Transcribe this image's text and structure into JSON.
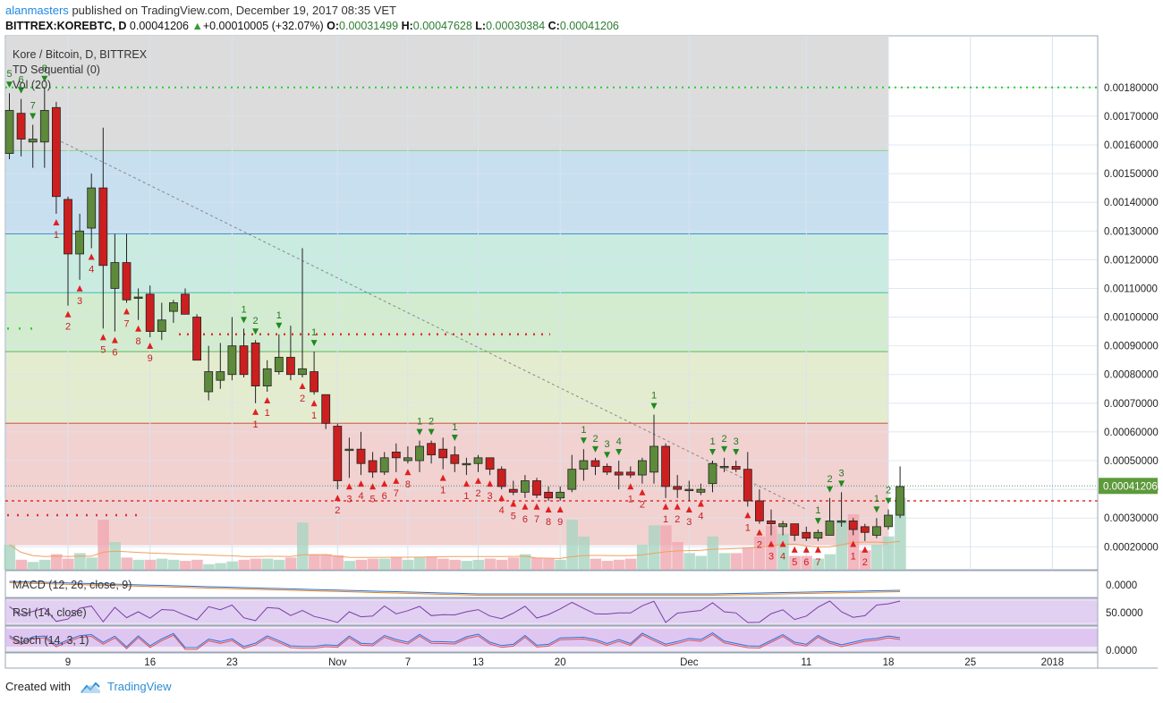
{
  "header": {
    "user": "alanmasters",
    "published": "published on TradingView.com, December 19, 2017 08:35 VET",
    "symbol": "BITTREX:KOREBTC, D",
    "last": "0.00041206",
    "change": "+0.00010005 (+32.07%)",
    "o_label": "O:",
    "o": "0.00031499",
    "h_label": "H:",
    "h": "0.00047628",
    "l_label": "L:",
    "l": "0.00030384",
    "c_label": "C:",
    "c": "0.00041206"
  },
  "legend": {
    "title": "Kore / Bitcoin, D, BITTREX",
    "td": "TD Sequential (0)",
    "vol": "Vol (20)"
  },
  "panes": {
    "macd": "MACD (12, 26, close, 9)",
    "rsi": "RSI (14, close)",
    "stoch": "Stoch (14, 3, 1)"
  },
  "footer": {
    "created": "Created with",
    "brand": "TradingView"
  },
  "colors": {
    "up": "#5d8a3b",
    "down": "#cc1f1f",
    "grid": "#d8e3ee",
    "fib_gray": "#dcdcdc",
    "fib_blue": "#c8dff0",
    "fib_teal": "#c9ebe0",
    "fib_green": "#d3ecd0",
    "fib_yellow": "#e4ecd0",
    "fib_pink": "#f2d1d1"
  },
  "chart_data": {
    "type": "candlestick",
    "price_axis": {
      "ticks": [
        "0.00020000",
        "0.00030000",
        "0.00040000",
        "0.00050000",
        "0.00060000",
        "0.00070000",
        "0.00080000",
        "0.00090000",
        "0.00100000",
        "0.00110000",
        "0.00120000",
        "0.00130000",
        "0.00140000",
        "0.00150000",
        "0.00160000",
        "0.00170000",
        "0.00180000"
      ],
      "range": [
        0.00012,
        0.00198
      ],
      "last_label": "0.00041206"
    },
    "time_axis": {
      "labels": [
        {
          "t": "9",
          "i": 5
        },
        {
          "t": "16",
          "i": 12
        },
        {
          "t": "23",
          "i": 19
        },
        {
          "t": "Nov",
          "i": 28
        },
        {
          "t": "7",
          "i": 34
        },
        {
          "t": "13",
          "i": 40
        },
        {
          "t": "20",
          "i": 47
        },
        {
          "t": "Dec",
          "i": 58
        },
        {
          "t": "11",
          "i": 68
        },
        {
          "t": "18",
          "i": 75
        },
        {
          "t": "25",
          "i": 82
        },
        {
          "t": "2018",
          "i": 89
        }
      ]
    },
    "fib_levels": [
      0.0018,
      0.00158,
      0.00129,
      0.001085,
      0.00088,
      0.00063,
      0.0006
    ],
    "hlines": {
      "red_dotted": 0.00036,
      "green_dotted_top": 0.0018,
      "red_dotted_mid": 0.00094,
      "green_dotted_left": 0.00096
    },
    "trendline": {
      "from": [
        4,
        0.00162
      ],
      "to": [
        68,
        0.00033
      ]
    },
    "candles": [
      {
        "o": 0.00157,
        "h": 0.00178,
        "l": 0.00155,
        "c": 0.00172
      },
      {
        "o": 0.00171,
        "h": 0.00176,
        "l": 0.00156,
        "c": 0.00162
      },
      {
        "o": 0.00161,
        "h": 0.00167,
        "l": 0.00152,
        "c": 0.00162
      },
      {
        "o": 0.00161,
        "h": 0.0018,
        "l": 0.00152,
        "c": 0.00172
      },
      {
        "o": 0.00173,
        "h": 0.00175,
        "l": 0.00136,
        "c": 0.00142
      },
      {
        "o": 0.00141,
        "h": 0.00142,
        "l": 0.00104,
        "c": 0.00122
      },
      {
        "o": 0.00122,
        "h": 0.00136,
        "l": 0.00113,
        "c": 0.0013
      },
      {
        "o": 0.00131,
        "h": 0.0015,
        "l": 0.00124,
        "c": 0.00145
      },
      {
        "o": 0.00145,
        "h": 0.00166,
        "l": 0.00096,
        "c": 0.00118
      },
      {
        "o": 0.0011,
        "h": 0.00129,
        "l": 0.00095,
        "c": 0.00119
      },
      {
        "o": 0.00119,
        "h": 0.00129,
        "l": 0.00105,
        "c": 0.00106
      },
      {
        "o": 0.00107,
        "h": 0.0011,
        "l": 0.00099,
        "c": 0.00107
      },
      {
        "o": 0.00108,
        "h": 0.00111,
        "l": 0.00093,
        "c": 0.00095
      },
      {
        "o": 0.00095,
        "h": 0.00105,
        "l": 0.00092,
        "c": 0.00099
      },
      {
        "o": 0.00102,
        "h": 0.00106,
        "l": 0.00098,
        "c": 0.00105
      },
      {
        "o": 0.00108,
        "h": 0.0011,
        "l": 0.00101,
        "c": 0.00101
      },
      {
        "o": 0.001,
        "h": 0.00101,
        "l": 0.00085,
        "c": 0.00085
      },
      {
        "o": 0.00074,
        "h": 0.0009,
        "l": 0.00071,
        "c": 0.00081
      },
      {
        "o": 0.00078,
        "h": 0.00091,
        "l": 0.00075,
        "c": 0.00081
      },
      {
        "o": 0.0008,
        "h": 0.001,
        "l": 0.00078,
        "c": 0.0009
      },
      {
        "o": 0.0009,
        "h": 0.00096,
        "l": 0.00079,
        "c": 0.0008
      },
      {
        "o": 0.00091,
        "h": 0.00092,
        "l": 0.0007,
        "c": 0.00076
      },
      {
        "o": 0.00076,
        "h": 0.00085,
        "l": 0.00074,
        "c": 0.00082
      },
      {
        "o": 0.00081,
        "h": 0.00094,
        "l": 0.0008,
        "c": 0.00086
      },
      {
        "o": 0.00086,
        "h": 0.00097,
        "l": 0.00078,
        "c": 0.0008
      },
      {
        "o": 0.0008,
        "h": 0.00124,
        "l": 0.00079,
        "c": 0.00082
      },
      {
        "o": 0.00081,
        "h": 0.00088,
        "l": 0.00073,
        "c": 0.00074
      },
      {
        "o": 0.00073,
        "h": 0.00073,
        "l": 0.00061,
        "c": 0.00063
      },
      {
        "o": 0.00062,
        "h": 0.00063,
        "l": 0.0004,
        "c": 0.00043
      },
      {
        "o": 0.00054,
        "h": 0.00058,
        "l": 0.00044,
        "c": 0.00054
      },
      {
        "o": 0.00054,
        "h": 0.0006,
        "l": 0.00045,
        "c": 0.00049
      },
      {
        "o": 0.0005,
        "h": 0.00053,
        "l": 0.00044,
        "c": 0.00046
      },
      {
        "o": 0.00046,
        "h": 0.00053,
        "l": 0.00045,
        "c": 0.00051
      },
      {
        "o": 0.00053,
        "h": 0.00056,
        "l": 0.00046,
        "c": 0.00051
      },
      {
        "o": 0.0005,
        "h": 0.00055,
        "l": 0.00049,
        "c": 0.00051
      },
      {
        "o": 0.0005,
        "h": 0.00057,
        "l": 0.00046,
        "c": 0.00055
      },
      {
        "o": 0.00056,
        "h": 0.00057,
        "l": 0.00049,
        "c": 0.00052
      },
      {
        "o": 0.00054,
        "h": 0.00058,
        "l": 0.00047,
        "c": 0.00051
      },
      {
        "o": 0.00052,
        "h": 0.00055,
        "l": 0.00046,
        "c": 0.00049
      },
      {
        "o": 0.00049,
        "h": 0.00051,
        "l": 0.00045,
        "c": 0.00049
      },
      {
        "o": 0.00049,
        "h": 0.00052,
        "l": 0.00046,
        "c": 0.00051
      },
      {
        "o": 0.00051,
        "h": 0.00051,
        "l": 0.00045,
        "c": 0.00047
      },
      {
        "o": 0.00047,
        "h": 0.00048,
        "l": 0.0004,
        "c": 0.00041
      },
      {
        "o": 0.0004,
        "h": 0.00043,
        "l": 0.00038,
        "c": 0.00039
      },
      {
        "o": 0.00039,
        "h": 0.00045,
        "l": 0.00037,
        "c": 0.00043
      },
      {
        "o": 0.00043,
        "h": 0.00044,
        "l": 0.00037,
        "c": 0.00038
      },
      {
        "o": 0.00039,
        "h": 0.00041,
        "l": 0.00036,
        "c": 0.00037
      },
      {
        "o": 0.00037,
        "h": 0.00041,
        "l": 0.00036,
        "c": 0.00039
      },
      {
        "o": 0.0004,
        "h": 0.00052,
        "l": 0.00039,
        "c": 0.00047
      },
      {
        "o": 0.00047,
        "h": 0.00054,
        "l": 0.00043,
        "c": 0.0005
      },
      {
        "o": 0.0005,
        "h": 0.00051,
        "l": 0.00045,
        "c": 0.00048
      },
      {
        "o": 0.00048,
        "h": 0.00049,
        "l": 0.00045,
        "c": 0.00046
      },
      {
        "o": 0.00046,
        "h": 0.0005,
        "l": 0.0004,
        "c": 0.00045
      },
      {
        "o": 0.00046,
        "h": 0.00048,
        "l": 0.00044,
        "c": 0.00045
      },
      {
        "o": 0.00045,
        "h": 0.00051,
        "l": 0.00042,
        "c": 0.0005
      },
      {
        "o": 0.00046,
        "h": 0.00066,
        "l": 0.00042,
        "c": 0.00055
      },
      {
        "o": 0.00055,
        "h": 0.00056,
        "l": 0.00037,
        "c": 0.00041
      },
      {
        "o": 0.00041,
        "h": 0.00045,
        "l": 0.00037,
        "c": 0.0004
      },
      {
        "o": 0.0004,
        "h": 0.00043,
        "l": 0.00036,
        "c": 0.0004
      },
      {
        "o": 0.00039,
        "h": 0.00042,
        "l": 0.00038,
        "c": 0.0004
      },
      {
        "o": 0.00042,
        "h": 0.0005,
        "l": 0.00039,
        "c": 0.00049
      },
      {
        "o": 0.00048,
        "h": 0.00051,
        "l": 0.00046,
        "c": 0.00048
      },
      {
        "o": 0.00048,
        "h": 0.0005,
        "l": 0.00046,
        "c": 0.00047
      },
      {
        "o": 0.00047,
        "h": 0.00053,
        "l": 0.00034,
        "c": 0.00036
      },
      {
        "o": 0.00036,
        "h": 0.0004,
        "l": 0.00028,
        "c": 0.00029
      },
      {
        "o": 0.00029,
        "h": 0.00033,
        "l": 0.00024,
        "c": 0.00028
      },
      {
        "o": 0.00027,
        "h": 0.00029,
        "l": 0.00024,
        "c": 0.00028
      },
      {
        "o": 0.00028,
        "h": 0.00028,
        "l": 0.00022,
        "c": 0.00024
      },
      {
        "o": 0.00025,
        "h": 0.00027,
        "l": 0.00022,
        "c": 0.00023
      },
      {
        "o": 0.00023,
        "h": 0.00026,
        "l": 0.00022,
        "c": 0.00025
      },
      {
        "o": 0.00024,
        "h": 0.00037,
        "l": 0.00024,
        "c": 0.00029
      },
      {
        "o": 0.00029,
        "h": 0.00039,
        "l": 0.00027,
        "c": 0.00029
      },
      {
        "o": 0.00029,
        "h": 0.0003,
        "l": 0.00024,
        "c": 0.00026
      },
      {
        "o": 0.00027,
        "h": 0.00028,
        "l": 0.00022,
        "c": 0.00025
      },
      {
        "o": 0.00024,
        "h": 0.0003,
        "l": 0.00023,
        "c": 0.00027
      },
      {
        "o": 0.00027,
        "h": 0.00033,
        "l": 0.00026,
        "c": 0.00031
      },
      {
        "o": 0.00031,
        "h": 0.00048,
        "l": 0.0003,
        "c": 0.00041
      }
    ],
    "volume": [
      0.45,
      0.18,
      0.14,
      0.18,
      0.28,
      0.2,
      0.3,
      0.22,
      0.9,
      0.5,
      0.22,
      0.18,
      0.18,
      0.2,
      0.18,
      0.16,
      0.18,
      0.1,
      0.12,
      0.15,
      0.18,
      0.2,
      0.2,
      0.18,
      0.22,
      0.85,
      0.28,
      0.28,
      0.26,
      0.16,
      0.18,
      0.2,
      0.2,
      0.22,
      0.18,
      0.22,
      0.24,
      0.2,
      0.18,
      0.16,
      0.18,
      0.2,
      0.18,
      0.22,
      0.28,
      0.22,
      0.2,
      0.18,
      0.9,
      0.6,
      0.2,
      0.16,
      0.18,
      0.2,
      0.45,
      0.8,
      0.8,
      0.5,
      0.3,
      0.25,
      0.6,
      0.3,
      0.3,
      0.4,
      0.6,
      0.8,
      0.65,
      0.25,
      0.25,
      0.2,
      0.28,
      0.9,
      1.0,
      0.35,
      0.45,
      0.6,
      1.3
    ],
    "td_buy": [
      {
        "i": 4,
        "n": "1"
      },
      {
        "i": 5,
        "n": "2"
      },
      {
        "i": 6,
        "n": "3"
      },
      {
        "i": 7,
        "n": "4"
      },
      {
        "i": 8,
        "n": "5"
      },
      {
        "i": 9,
        "n": "6"
      },
      {
        "i": 10,
        "n": "7"
      },
      {
        "i": 11,
        "n": "8"
      },
      {
        "i": 12,
        "n": "9"
      },
      {
        "i": 22,
        "n": "1"
      },
      {
        "i": 21,
        "n": "1"
      },
      {
        "i": 25,
        "n": "2"
      },
      {
        "i": 26,
        "n": "1"
      },
      {
        "i": 28,
        "n": "2"
      },
      {
        "i": 29,
        "n": "3"
      },
      {
        "i": 30,
        "n": "4"
      },
      {
        "i": 31,
        "n": "5"
      },
      {
        "i": 32,
        "n": "6"
      },
      {
        "i": 33,
        "n": "7"
      },
      {
        "i": 34,
        "n": "8"
      },
      {
        "i": 37,
        "n": "1"
      },
      {
        "i": 39,
        "n": "1"
      },
      {
        "i": 40,
        "n": "2"
      },
      {
        "i": 41,
        "n": "3"
      },
      {
        "i": 42,
        "n": "4"
      },
      {
        "i": 43,
        "n": "5"
      },
      {
        "i": 44,
        "n": "6"
      },
      {
        "i": 45,
        "n": "7"
      },
      {
        "i": 46,
        "n": "8"
      },
      {
        "i": 47,
        "n": "9"
      },
      {
        "i": 53,
        "n": "1"
      },
      {
        "i": 54,
        "n": "2"
      },
      {
        "i": 56,
        "n": "1"
      },
      {
        "i": 57,
        "n": "2"
      },
      {
        "i": 58,
        "n": "3"
      },
      {
        "i": 59,
        "n": "4"
      },
      {
        "i": 63,
        "n": "1"
      },
      {
        "i": 64,
        "n": "2"
      },
      {
        "i": 65,
        "n": "3"
      },
      {
        "i": 66,
        "n": "4"
      },
      {
        "i": 67,
        "n": "5"
      },
      {
        "i": 68,
        "n": "6"
      },
      {
        "i": 69,
        "n": "7"
      },
      {
        "i": 72,
        "n": "1"
      },
      {
        "i": 73,
        "n": "2"
      }
    ],
    "td_sell": [
      {
        "i": 0,
        "n": "5"
      },
      {
        "i": 1,
        "n": "6"
      },
      {
        "i": 2,
        "n": "7"
      },
      {
        "i": 3,
        "n": "8"
      },
      {
        "i": 20,
        "n": "1"
      },
      {
        "i": 21,
        "n": "2"
      },
      {
        "i": 23,
        "n": "1"
      },
      {
        "i": 26,
        "n": "1"
      },
      {
        "i": 35,
        "n": "1"
      },
      {
        "i": 36,
        "n": "2"
      },
      {
        "i": 38,
        "n": "1"
      },
      {
        "i": 49,
        "n": "1"
      },
      {
        "i": 50,
        "n": "2"
      },
      {
        "i": 51,
        "n": "3"
      },
      {
        "i": 52,
        "n": "4"
      },
      {
        "i": 55,
        "n": "1"
      },
      {
        "i": 60,
        "n": "1"
      },
      {
        "i": 61,
        "n": "2"
      },
      {
        "i": 62,
        "n": "3"
      },
      {
        "i": 69,
        "n": "1"
      },
      {
        "i": 70,
        "n": "2"
      },
      {
        "i": 71,
        "n": "3"
      },
      {
        "i": 74,
        "n": "1"
      },
      {
        "i": 75,
        "n": "2"
      }
    ],
    "macd_axis": "0.0000",
    "rsi_axis": "50.0000",
    "stoch_axis": "0.0000"
  }
}
